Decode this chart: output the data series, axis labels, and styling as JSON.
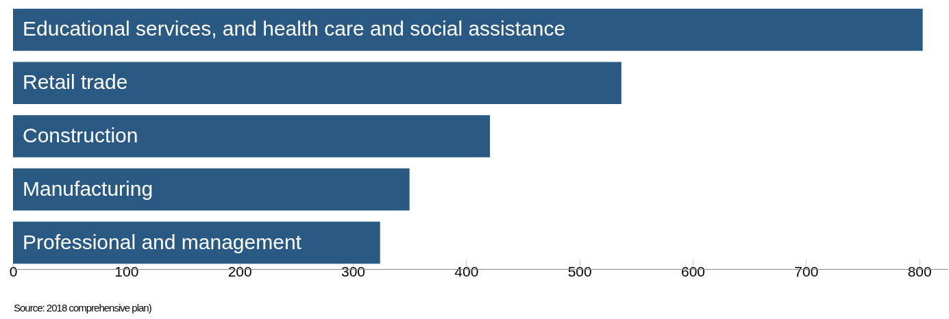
{
  "chart_data": {
    "type": "bar",
    "orientation": "horizontal",
    "categories": [
      "Educational services, and health care and social assistance",
      "Retail trade",
      "Construction",
      "Manufacturing",
      "Professional and management"
    ],
    "values": [
      803,
      537,
      421,
      350,
      324
    ],
    "color": "#2a5a84",
    "xlim": [
      0,
      825
    ],
    "xticks": [
      0,
      100,
      200,
      300,
      400,
      500,
      600,
      700,
      800
    ],
    "grid": false,
    "annotations": [
      "Source: 2018 comprehensive plan)"
    ]
  }
}
